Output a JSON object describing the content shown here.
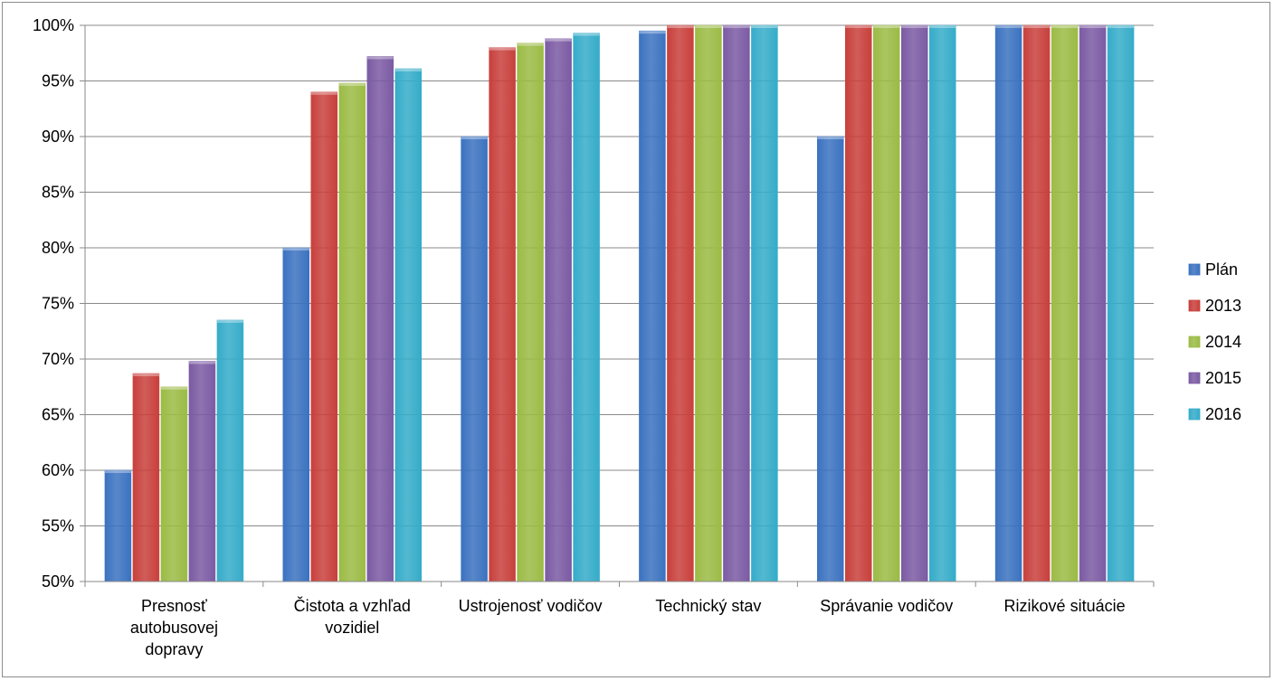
{
  "chart_data": {
    "type": "bar",
    "categories": [
      [
        "Presnosť",
        "autobusovej",
        "dopravy"
      ],
      [
        "Čistota a vzhľad",
        "vozidiel"
      ],
      [
        "Ustrojenosť vodičov"
      ],
      [
        "Technický stav"
      ],
      [
        "Správanie vodičov"
      ],
      [
        "Rizikové situácie"
      ]
    ],
    "series": [
      {
        "name": "Plán",
        "color": "#3b72c0",
        "values": [
          60,
          80,
          90,
          99.5,
          90,
          100
        ]
      },
      {
        "name": "2013",
        "color": "#c8403c",
        "values": [
          68.7,
          94,
          98,
          100,
          100,
          100
        ]
      },
      {
        "name": "2014",
        "color": "#9bbb45",
        "values": [
          67.5,
          94.8,
          98.4,
          100,
          100,
          100
        ]
      },
      {
        "name": "2015",
        "color": "#7b5aa3",
        "values": [
          69.8,
          97.2,
          98.8,
          100,
          100,
          100
        ]
      },
      {
        "name": "2016",
        "color": "#35acc9",
        "values": [
          73.5,
          96.1,
          99.3,
          100,
          100,
          100
        ]
      }
    ],
    "ylim": [
      50,
      100
    ],
    "yticks": [
      "50%",
      "55%",
      "60%",
      "65%",
      "70%",
      "75%",
      "80%",
      "85%",
      "90%",
      "95%",
      "100%"
    ],
    "grid": true,
    "legend_position": "right"
  }
}
